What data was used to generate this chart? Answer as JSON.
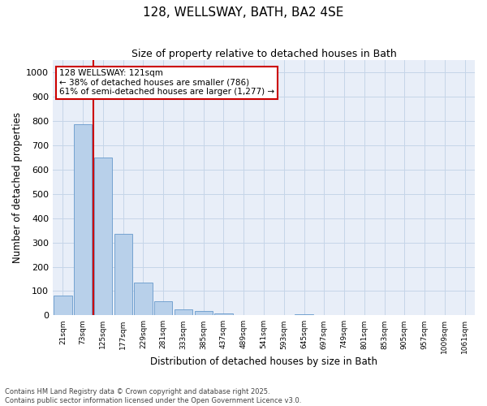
{
  "title1": "128, WELLSWAY, BATH, BA2 4SE",
  "title2": "Size of property relative to detached houses in Bath",
  "xlabel": "Distribution of detached houses by size in Bath",
  "ylabel": "Number of detached properties",
  "categories": [
    "21sqm",
    "73sqm",
    "125sqm",
    "177sqm",
    "229sqm",
    "281sqm",
    "333sqm",
    "385sqm",
    "437sqm",
    "489sqm",
    "541sqm",
    "593sqm",
    "645sqm",
    "697sqm",
    "749sqm",
    "801sqm",
    "853sqm",
    "905sqm",
    "957sqm",
    "1009sqm",
    "1061sqm"
  ],
  "values": [
    80,
    785,
    650,
    335,
    135,
    57,
    25,
    18,
    8,
    0,
    0,
    0,
    5,
    0,
    0,
    0,
    0,
    0,
    0,
    0,
    0
  ],
  "bar_color": "#b8d0ea",
  "bar_edge_color": "#6699cc",
  "vline_index": 2,
  "vline_color": "#cc0000",
  "annotation_text": "128 WELLSWAY: 121sqm\n← 38% of detached houses are smaller (786)\n61% of semi-detached houses are larger (1,277) →",
  "annotation_box_color": "#cc0000",
  "annotation_facecolor": "white",
  "ylim": [
    0,
    1050
  ],
  "yticks": [
    0,
    100,
    200,
    300,
    400,
    500,
    600,
    700,
    800,
    900,
    1000
  ],
  "grid_color": "#c5d5e8",
  "bg_color": "#e8eef8",
  "footer": "Contains HM Land Registry data © Crown copyright and database right 2025.\nContains public sector information licensed under the Open Government Licence v3.0."
}
